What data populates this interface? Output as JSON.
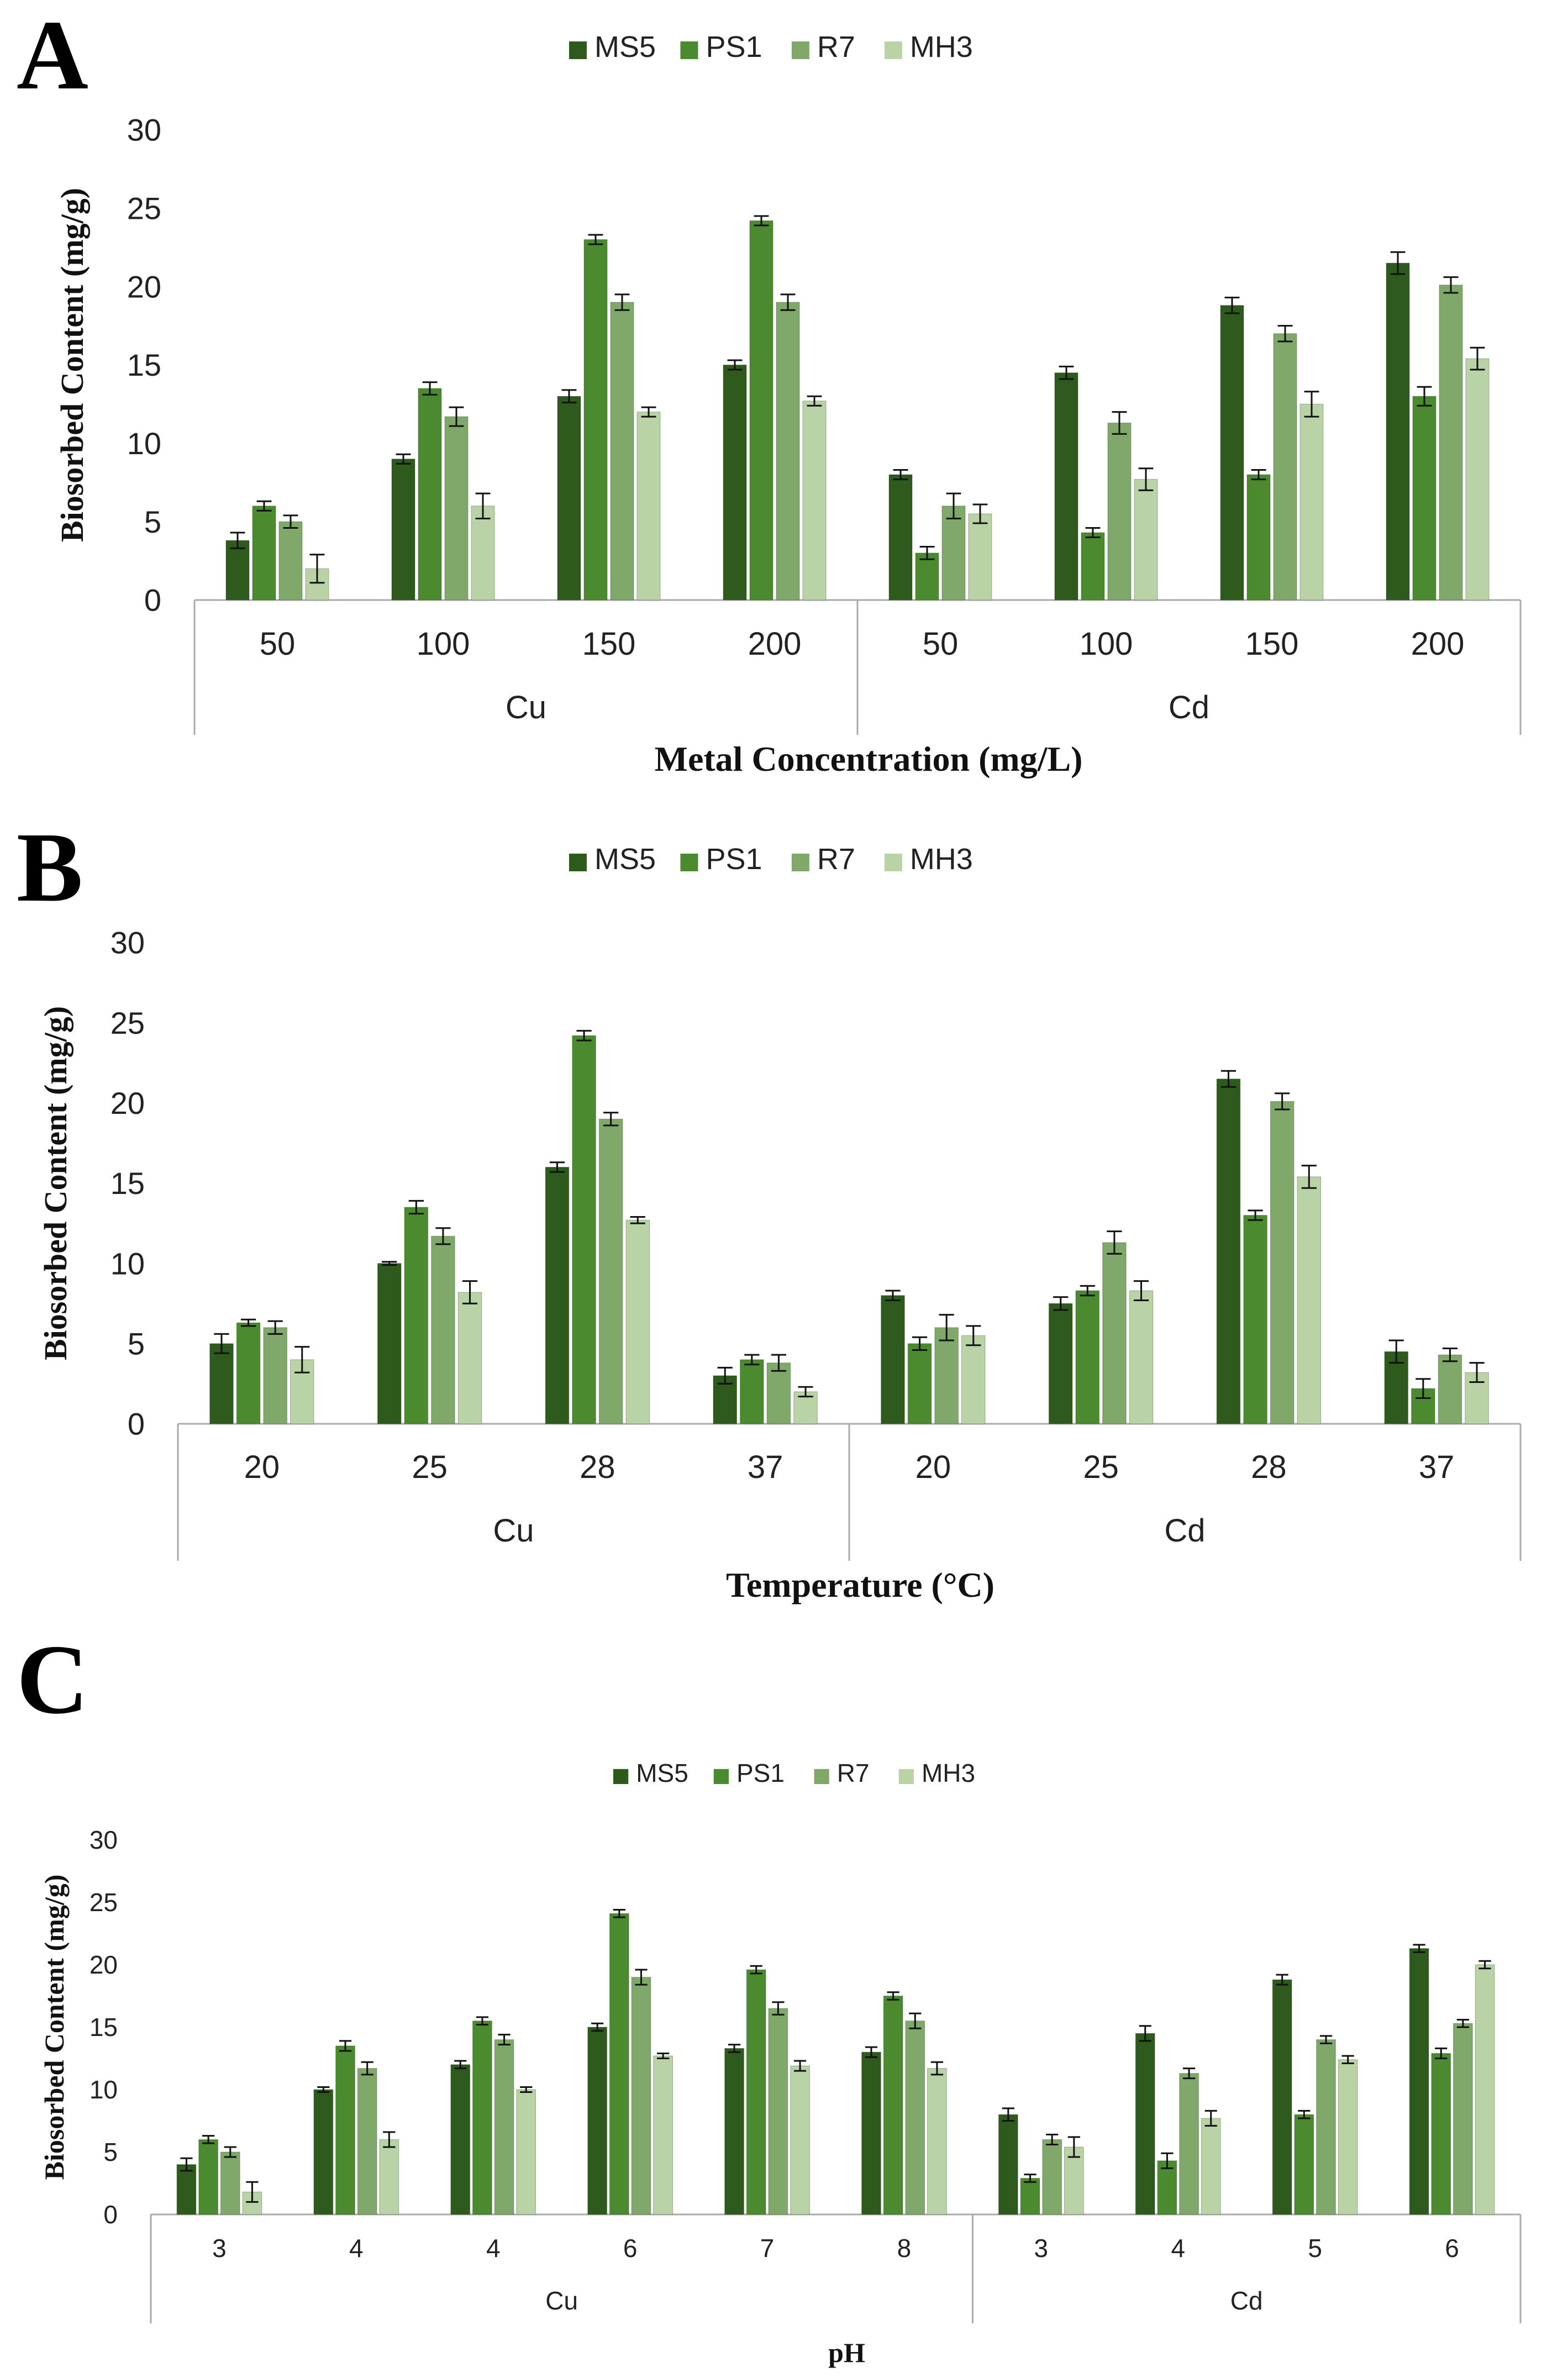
{
  "colors": {
    "MS5": "#2e5a1e",
    "PS1": "#4b8a2e",
    "R7": "#7fa86a",
    "MH3": "#b9d3a7",
    "axis": "#aaaaaa",
    "text": "#222222"
  },
  "chart_data": [
    {
      "type": "bar",
      "panel": "A",
      "legend": [
        "MS5",
        "PS1",
        "R7",
        "MH3"
      ],
      "ylabel": "Biosorbed Content (mg/g)",
      "xlabel": "Metal Concentration (mg/L)",
      "ylim": [
        0,
        30
      ],
      "yticks": [
        0,
        5,
        10,
        15,
        20,
        25,
        30
      ],
      "groups": [
        {
          "label": "Cu",
          "categories": [
            "50",
            "100",
            "150",
            "200"
          ]
        },
        {
          "label": "Cd",
          "categories": [
            "50",
            "100",
            "150",
            "200"
          ]
        }
      ],
      "series": [
        {
          "name": "MS5",
          "values": [
            3.8,
            9,
            13,
            15,
            8,
            14.5,
            18.8,
            21.5
          ]
        },
        {
          "name": "PS1",
          "values": [
            6,
            13.5,
            23,
            24.2,
            3,
            4.3,
            8,
            13
          ]
        },
        {
          "name": "R7",
          "values": [
            5,
            11.7,
            19,
            19,
            6,
            11.3,
            17,
            20.1
          ]
        },
        {
          "name": "MH3",
          "values": [
            2,
            6,
            12,
            12.7,
            5.5,
            7.7,
            12.5,
            15.4
          ]
        }
      ],
      "errors": [
        [
          0.5,
          0.3,
          0.4,
          0.3,
          0.3,
          0.4,
          0.5,
          0.7
        ],
        [
          0.3,
          0.4,
          0.3,
          0.3,
          0.4,
          0.3,
          0.3,
          0.6
        ],
        [
          0.4,
          0.6,
          0.5,
          0.5,
          0.8,
          0.7,
          0.5,
          0.5
        ],
        [
          0.9,
          0.8,
          0.3,
          0.3,
          0.6,
          0.7,
          0.8,
          0.7
        ]
      ]
    },
    {
      "type": "bar",
      "panel": "B",
      "legend": [
        "MS5",
        "PS1",
        "R7",
        "MH3"
      ],
      "ylabel": "Biosorbed Content (mg/g)",
      "xlabel": "Temperature (°C)",
      "ylim": [
        0,
        30
      ],
      "yticks": [
        0,
        5,
        10,
        15,
        20,
        25,
        30
      ],
      "groups": [
        {
          "label": "Cu",
          "categories": [
            "20",
            "25",
            "28",
            "37"
          ]
        },
        {
          "label": "Cd",
          "categories": [
            "20",
            "25",
            "28",
            "37"
          ]
        }
      ],
      "series": [
        {
          "name": "MS5",
          "values": [
            5,
            10,
            16,
            3,
            8,
            7.5,
            21.5,
            4.5
          ]
        },
        {
          "name": "PS1",
          "values": [
            6.3,
            13.5,
            24.2,
            4,
            5,
            8.3,
            13,
            2.2
          ]
        },
        {
          "name": "R7",
          "values": [
            6,
            11.7,
            19,
            3.8,
            6,
            11.3,
            20.1,
            4.3
          ]
        },
        {
          "name": "MH3",
          "values": [
            4,
            8.2,
            12.7,
            2,
            5.5,
            8.3,
            15.4,
            3.2
          ]
        }
      ],
      "errors": [
        [
          0.6,
          0.1,
          0.3,
          0.5,
          0.3,
          0.4,
          0.5,
          0.7
        ],
        [
          0.2,
          0.4,
          0.3,
          0.3,
          0.4,
          0.3,
          0.3,
          0.6
        ],
        [
          0.4,
          0.5,
          0.4,
          0.5,
          0.8,
          0.7,
          0.5,
          0.4
        ],
        [
          0.8,
          0.7,
          0.2,
          0.3,
          0.6,
          0.6,
          0.7,
          0.6
        ]
      ]
    },
    {
      "type": "bar",
      "panel": "C",
      "legend": [
        "MS5",
        "PS1",
        "R7",
        "MH3"
      ],
      "ylabel": "Biosorbed Content (mg/g)",
      "xlabel": "pH",
      "ylim": [
        0,
        30
      ],
      "yticks": [
        0,
        5,
        10,
        15,
        20,
        25,
        30
      ],
      "groups": [
        {
          "label": "Cu",
          "categories": [
            "3",
            "4",
            "4",
            "6",
            "7",
            "8"
          ]
        },
        {
          "label": "Cd",
          "categories": [
            "3",
            "4",
            "5",
            "6"
          ]
        }
      ],
      "series": [
        {
          "name": "MS5",
          "values": [
            4,
            10,
            12,
            15,
            13.3,
            13,
            8,
            14.5,
            18.8,
            21.3
          ]
        },
        {
          "name": "PS1",
          "values": [
            6,
            13.5,
            15.5,
            24.1,
            19.6,
            17.5,
            2.9,
            4.3,
            8,
            12.9
          ]
        },
        {
          "name": "R7",
          "values": [
            5,
            11.7,
            14,
            19,
            16.5,
            15.5,
            6,
            11.3,
            14,
            15.3
          ]
        },
        {
          "name": "MH3",
          "values": [
            1.8,
            6,
            10,
            12.7,
            11.9,
            11.7,
            5.4,
            7.7,
            12.4,
            20
          ]
        }
      ],
      "errors": [
        [
          0.5,
          0.2,
          0.3,
          0.3,
          0.3,
          0.4,
          0.5,
          0.6,
          0.4,
          0.3
        ],
        [
          0.3,
          0.4,
          0.3,
          0.3,
          0.3,
          0.3,
          0.3,
          0.6,
          0.3,
          0.4
        ],
        [
          0.4,
          0.5,
          0.4,
          0.6,
          0.5,
          0.6,
          0.4,
          0.4,
          0.3,
          0.3
        ],
        [
          0.8,
          0.6,
          0.2,
          0.2,
          0.4,
          0.5,
          0.8,
          0.6,
          0.3,
          0.3
        ]
      ]
    }
  ]
}
